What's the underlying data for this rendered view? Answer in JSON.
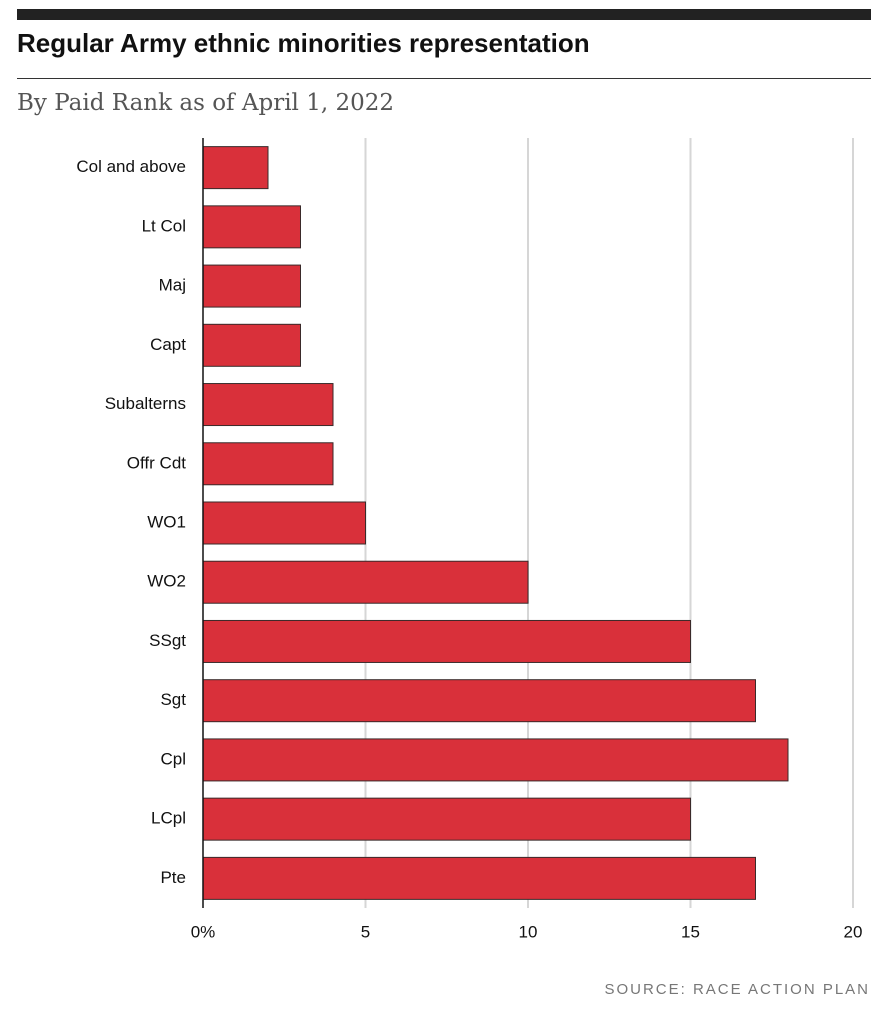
{
  "chart_data": {
    "type": "hbar",
    "title": "Regular Army ethnic minorities representation",
    "subtitle": "By Paid Rank as of April 1, 2022",
    "source": "SOURCE: RACE ACTION PLAN",
    "categories": [
      "Col and above",
      "Lt Col",
      "Maj",
      "Capt",
      "Subalterns",
      "Offr Cdt",
      "WO1",
      "WO2",
      "SSgt",
      "Sgt",
      "Cpl",
      "LCpl",
      "Pte"
    ],
    "values": [
      2,
      3,
      3,
      3,
      4,
      4,
      5,
      10,
      15,
      17,
      18,
      15,
      17
    ],
    "color": "#d9303a",
    "xlim": [
      0,
      20
    ],
    "xticks": [
      {
        "value": 0,
        "label": "0%"
      },
      5,
      10,
      15,
      20
    ],
    "grid": true
  }
}
